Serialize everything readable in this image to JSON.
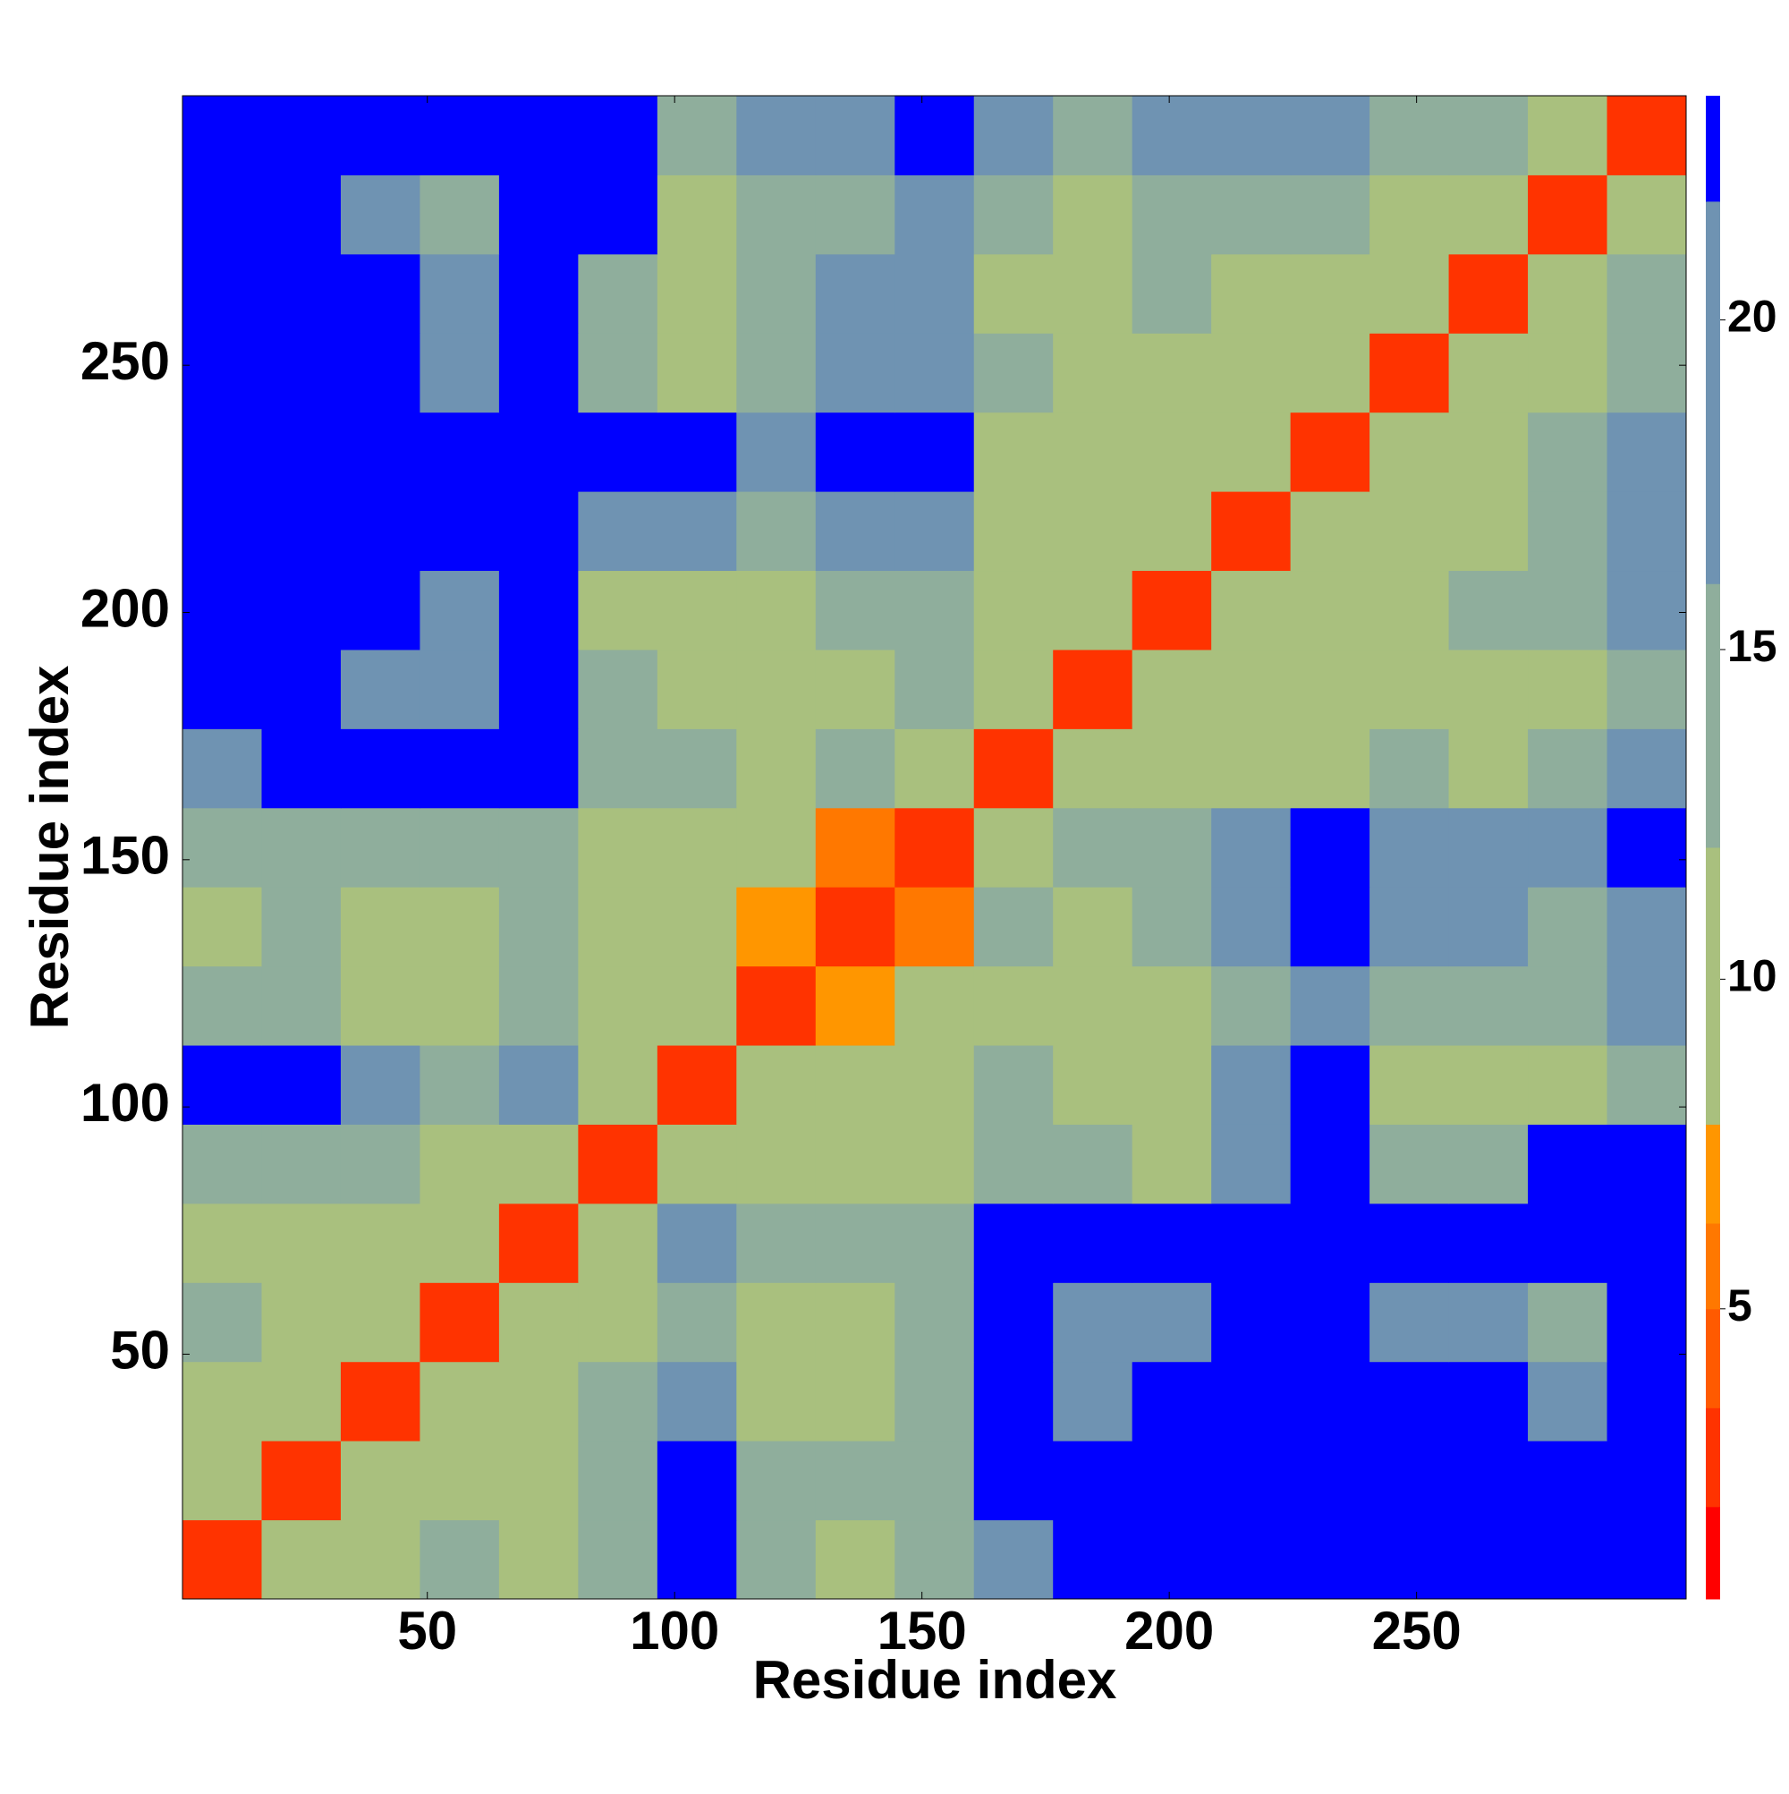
{
  "chart_data": {
    "type": "heatmap",
    "x_label": "Residue index",
    "y_label": "Residue index",
    "bins": [
      0.5,
      16.5,
      32.5,
      48.5,
      64.5,
      80.5,
      96.5,
      112.5,
      128.5,
      144.5,
      160.5,
      176.5,
      192.5,
      208.5,
      224.5,
      240.5,
      256.5,
      272.5,
      288.5,
      304.5
    ],
    "values": [
      [
        3,
        10,
        12,
        13,
        12,
        15,
        23,
        16,
        12,
        14,
        17,
        23,
        23,
        23,
        23,
        23,
        23,
        23,
        23
      ],
      [
        10,
        3,
        10,
        12,
        11,
        16,
        23,
        16,
        13,
        15,
        23,
        23,
        23,
        23,
        23,
        23,
        23,
        23,
        23
      ],
      [
        12,
        10,
        3,
        9,
        12,
        13,
        18,
        12,
        12,
        13,
        23,
        18,
        23,
        23,
        23,
        23,
        23,
        18,
        23
      ],
      [
        13,
        12,
        9,
        3,
        10,
        12,
        13,
        12,
        12,
        15,
        23,
        17,
        18,
        23,
        23,
        20,
        20,
        14,
        23
      ],
      [
        12,
        11,
        12,
        10,
        3,
        10,
        20,
        16,
        16,
        16,
        23,
        23,
        23,
        23,
        23,
        23,
        23,
        23,
        23
      ],
      [
        15,
        16,
        13,
        12,
        10,
        3,
        10,
        12,
        11,
        12,
        15,
        13,
        12,
        19,
        23,
        13,
        15,
        23,
        23
      ],
      [
        23,
        23,
        18,
        13,
        20,
        10,
        3,
        10,
        12,
        12,
        15,
        11,
        11,
        19,
        23,
        11,
        11,
        12,
        15
      ],
      [
        16,
        16,
        12,
        12,
        16,
        12,
        10,
        3,
        7,
        9,
        12,
        12,
        12,
        16,
        20,
        14,
        13,
        13,
        19
      ],
      [
        12,
        13,
        12,
        12,
        16,
        11,
        12,
        7,
        3,
        6,
        14,
        12,
        14,
        20,
        23,
        18,
        17,
        15,
        20
      ],
      [
        14,
        15,
        13,
        15,
        16,
        12,
        12,
        9,
        6,
        3,
        9,
        14,
        16,
        20,
        23,
        20,
        20,
        17,
        23
      ],
      [
        17,
        23,
        23,
        23,
        23,
        15,
        15,
        12,
        14,
        9,
        3,
        8,
        12,
        12,
        12,
        13,
        12,
        13,
        17
      ],
      [
        23,
        23,
        18,
        17,
        23,
        13,
        11,
        12,
        12,
        14,
        8,
        3,
        8,
        11,
        12,
        12,
        12,
        12,
        16
      ],
      [
        23,
        23,
        23,
        18,
        23,
        12,
        11,
        12,
        14,
        16,
        12,
        8,
        3,
        9,
        12,
        12,
        13,
        14,
        17
      ],
      [
        23,
        23,
        23,
        23,
        23,
        19,
        19,
        16,
        20,
        20,
        12,
        11,
        9,
        3,
        9,
        12,
        12,
        14,
        20
      ],
      [
        23,
        23,
        23,
        23,
        23,
        23,
        23,
        20,
        23,
        23,
        12,
        12,
        12,
        9,
        3,
        9,
        12,
        14,
        20
      ],
      [
        23,
        23,
        23,
        20,
        23,
        13,
        11,
        14,
        18,
        20,
        13,
        12,
        12,
        12,
        9,
        3,
        9,
        11,
        16
      ],
      [
        23,
        23,
        23,
        20,
        23,
        15,
        11,
        13,
        17,
        20,
        12,
        12,
        13,
        12,
        12,
        9,
        3,
        9,
        14
      ],
      [
        23,
        23,
        18,
        14,
        23,
        23,
        12,
        13,
        15,
        17,
        13,
        12,
        14,
        14,
        14,
        11,
        9,
        3,
        9
      ],
      [
        23,
        23,
        23,
        23,
        23,
        23,
        15,
        19,
        20,
        23,
        17,
        16,
        17,
        20,
        20,
        16,
        14,
        9,
        3
      ]
    ],
    "xlim": [
      0.5,
      304.5
    ],
    "ylim": [
      0.5,
      304.5
    ],
    "xticks": [
      50,
      100,
      150,
      200,
      250
    ],
    "yticks": [
      50,
      100,
      150,
      200,
      250
    ],
    "clim": [
      0.6,
      23.4
    ],
    "cticks": [
      5,
      10,
      15,
      20
    ],
    "color_levels": [
      0.6,
      2,
      3.5,
      5,
      6.3,
      7.8,
      12,
      16,
      21.8,
      23.4
    ],
    "colors": [
      "#ff0000",
      "#ff3300",
      "#ff5a00",
      "#ff7800",
      "#ff9600",
      "#a9c07e",
      "#8fae9c",
      "#6f93b2",
      "#0000ff"
    ]
  }
}
